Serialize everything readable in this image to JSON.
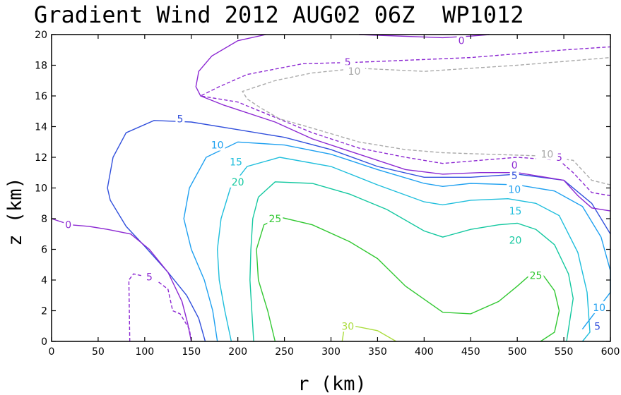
{
  "chart_data": {
    "type": "contour",
    "title": "Gradient Wind 2012 AUG02 06Z  WP1012",
    "xlabel": "r (km)",
    "ylabel": "z (km)",
    "xlim": [
      0,
      600
    ],
    "ylim": [
      0,
      20
    ],
    "xticks": [
      "0",
      "50",
      "100",
      "150",
      "200",
      "250",
      "300",
      "350",
      "400",
      "450",
      "500",
      "550",
      "600"
    ],
    "yticks": [
      "0",
      "2",
      "4",
      "6",
      "8",
      "10",
      "12",
      "14",
      "16",
      "18",
      "20"
    ],
    "grid": false,
    "contours": [
      {
        "level": "30",
        "color": "#aadc3c",
        "dash": false,
        "points": [
          [
            312,
            0
          ],
          [
            314,
            0.8
          ],
          [
            325,
            1.0
          ],
          [
            350,
            0.7
          ],
          [
            370,
            0
          ]
        ],
        "labels": [
          [
            318,
            1.0
          ]
        ]
      },
      {
        "level": "25",
        "color": "#32c832",
        "dash": false,
        "points": [
          [
            240,
            0
          ],
          [
            232,
            2
          ],
          [
            222,
            4
          ],
          [
            220,
            6
          ],
          [
            228,
            7.6
          ],
          [
            245,
            8.1
          ],
          [
            280,
            7.6
          ],
          [
            320,
            6.5
          ],
          [
            350,
            5.4
          ],
          [
            380,
            3.6
          ],
          [
            420,
            1.9
          ],
          [
            450,
            1.8
          ],
          [
            480,
            2.6
          ],
          [
            500,
            3.6
          ],
          [
            515,
            4.4
          ],
          [
            528,
            4.3
          ],
          [
            540,
            3.3
          ],
          [
            545,
            2.0
          ],
          [
            540,
            0.6
          ],
          [
            525,
            0
          ]
        ],
        "labels": [
          [
            240,
            8.0
          ],
          [
            520,
            4.3
          ]
        ]
      },
      {
        "level": "20",
        "color": "#14c8a0",
        "dash": false,
        "points": [
          [
            217,
            0
          ],
          [
            215,
            2
          ],
          [
            213,
            4
          ],
          [
            214,
            6
          ],
          [
            216,
            8
          ],
          [
            222,
            9.4
          ],
          [
            240,
            10.4
          ],
          [
            280,
            10.3
          ],
          [
            320,
            9.6
          ],
          [
            360,
            8.6
          ],
          [
            400,
            7.2
          ],
          [
            420,
            6.8
          ],
          [
            450,
            7.3
          ],
          [
            480,
            7.6
          ],
          [
            500,
            7.7
          ],
          [
            520,
            7.3
          ],
          [
            540,
            6.3
          ],
          [
            555,
            4.4
          ],
          [
            560,
            2.8
          ],
          [
            553,
            0
          ]
        ],
        "labels": [
          [
            200,
            10.4
          ],
          [
            498,
            6.6
          ]
        ]
      },
      {
        "level": "15",
        "color": "#1ebedc",
        "dash": false,
        "points": [
          [
            193,
            0
          ],
          [
            186,
            2
          ],
          [
            180,
            4
          ],
          [
            178,
            6
          ],
          [
            182,
            8
          ],
          [
            192,
            10
          ],
          [
            210,
            11.4
          ],
          [
            245,
            12.0
          ],
          [
            300,
            11.4
          ],
          [
            350,
            10.2
          ],
          [
            400,
            9.1
          ],
          [
            420,
            8.9
          ],
          [
            450,
            9.2
          ],
          [
            490,
            9.3
          ],
          [
            520,
            9.0
          ],
          [
            545,
            8.2
          ],
          [
            565,
            5.8
          ],
          [
            575,
            3.2
          ],
          [
            578,
            0.6
          ],
          [
            570,
            0
          ]
        ],
        "labels": [
          [
            198,
            11.7
          ],
          [
            498,
            8.5
          ]
        ]
      },
      {
        "level": "10",
        "color": "#1ea0f0",
        "dash": false,
        "points": [
          [
            178,
            0
          ],
          [
            173,
            2
          ],
          [
            164,
            4
          ],
          [
            150,
            6
          ],
          [
            142,
            8
          ],
          [
            148,
            10
          ],
          [
            166,
            12
          ],
          [
            200,
            13.0
          ],
          [
            250,
            12.8
          ],
          [
            300,
            12.2
          ],
          [
            350,
            11.2
          ],
          [
            400,
            10.3
          ],
          [
            420,
            10.1
          ],
          [
            450,
            10.3
          ],
          [
            500,
            10.2
          ],
          [
            540,
            9.8
          ],
          [
            570,
            8.8
          ],
          [
            590,
            6.8
          ],
          [
            600,
            4.6
          ],
          [
            600,
            3.2
          ],
          [
            580,
            1.6
          ],
          [
            570,
            0.8
          ]
        ],
        "labels": [
          [
            178,
            12.8
          ],
          [
            497,
            9.9
          ],
          [
            588,
            2.2
          ]
        ]
      },
      {
        "level": "5",
        "color": "#3250dc",
        "dash": false,
        "points": [
          [
            165,
            0
          ],
          [
            158,
            1.5
          ],
          [
            145,
            3
          ],
          [
            125,
            4.5
          ],
          [
            100,
            6.2
          ],
          [
            80,
            7.5
          ],
          [
            70,
            8.5
          ],
          [
            63,
            9.2
          ],
          [
            60,
            10
          ],
          [
            66,
            12
          ],
          [
            80,
            13.6
          ],
          [
            110,
            14.4
          ],
          [
            150,
            14.3
          ],
          [
            200,
            13.8
          ],
          [
            250,
            13.3
          ],
          [
            300,
            12.5
          ],
          [
            350,
            11.4
          ],
          [
            400,
            10.7
          ],
          [
            450,
            10.7
          ],
          [
            500,
            10.9
          ],
          [
            550,
            10.5
          ],
          [
            580,
            9.0
          ],
          [
            600,
            7.0
          ]
        ],
        "labels": [
          [
            138,
            14.5
          ],
          [
            497,
            10.8
          ],
          [
            586,
            1.0
          ]
        ]
      },
      {
        "level": "0",
        "color": "#8c28d2",
        "dash": false,
        "points": [
          [
            150,
            0
          ],
          [
            146,
            1.2
          ],
          [
            140,
            2.6
          ],
          [
            125,
            4.5
          ],
          [
            105,
            6.0
          ],
          [
            85,
            7.0
          ],
          [
            60,
            7.3
          ],
          [
            40,
            7.5
          ],
          [
            20,
            7.6
          ],
          [
            0,
            8.0
          ]
        ],
        "labels": [
          [
            18,
            7.6
          ]
        ]
      },
      {
        "level": "0",
        "color": "#8c28d2",
        "dash": false,
        "points": [
          [
            600,
            8.5
          ],
          [
            580,
            8.7
          ],
          [
            565,
            9.5
          ],
          [
            550,
            10.5
          ],
          [
            500,
            11.0
          ],
          [
            460,
            11.0
          ],
          [
            420,
            10.9
          ],
          [
            380,
            11.2
          ],
          [
            330,
            12.2
          ],
          [
            280,
            13.2
          ],
          [
            240,
            14.3
          ],
          [
            185,
            15.4
          ],
          [
            160,
            16.0
          ],
          [
            155,
            16.6
          ],
          [
            158,
            17.6
          ],
          [
            172,
            18.6
          ],
          [
            200,
            19.6
          ],
          [
            230,
            20.0
          ]
        ],
        "labels": [
          [
            497,
            11.5
          ]
        ]
      },
      {
        "level": "0",
        "color": "#8c28d2",
        "dash": false,
        "points": [
          [
            330,
            20.0
          ],
          [
            420,
            19.8
          ],
          [
            450,
            19.9
          ],
          [
            470,
            20.0
          ]
        ],
        "labels": [
          [
            440,
            19.6
          ]
        ]
      },
      {
        "level": "-5",
        "color": "#8c28d2",
        "dash": true,
        "points": [
          [
            600,
            9.5
          ],
          [
            580,
            9.7
          ],
          [
            560,
            11.0
          ],
          [
            545,
            11.8
          ],
          [
            500,
            12.0
          ],
          [
            460,
            11.8
          ],
          [
            420,
            11.6
          ],
          [
            380,
            12.0
          ],
          [
            330,
            12.6
          ],
          [
            280,
            13.6
          ],
          [
            240,
            14.6
          ],
          [
            200,
            15.6
          ],
          [
            160,
            16.0
          ],
          [
            180,
            16.6
          ],
          [
            210,
            17.4
          ],
          [
            270,
            18.1
          ],
          [
            330,
            18.2
          ],
          [
            450,
            18.5
          ],
          [
            550,
            19.0
          ],
          [
            600,
            19.2
          ]
        ],
        "labels": [
          [
            545,
            12.0
          ],
          [
            318,
            18.2
          ]
        ]
      },
      {
        "level": "-5",
        "color": "#8c28d2",
        "dash": true,
        "points": [
          [
            84,
            0
          ],
          [
            83,
            4
          ],
          [
            88,
            4.4
          ],
          [
            110,
            4.1
          ],
          [
            125,
            3.4
          ],
          [
            130,
            2.0
          ],
          [
            138,
            1.8
          ],
          [
            148,
            0.8
          ],
          [
            150,
            0
          ]
        ],
        "labels": [
          [
            105,
            4.2
          ]
        ]
      },
      {
        "level": "-10",
        "color": "#aaaaaa",
        "dash": true,
        "points": [
          [
            600,
            10.2
          ],
          [
            580,
            10.5
          ],
          [
            560,
            11.8
          ],
          [
            520,
            12.1
          ],
          [
            470,
            12.2
          ],
          [
            420,
            12.3
          ],
          [
            380,
            12.5
          ],
          [
            330,
            13.0
          ],
          [
            280,
            13.9
          ],
          [
            245,
            14.5
          ],
          [
            225,
            15.2
          ],
          [
            210,
            15.8
          ],
          [
            205,
            16.3
          ],
          [
            240,
            17.0
          ],
          [
            280,
            17.5
          ],
          [
            330,
            17.8
          ],
          [
            400,
            17.6
          ],
          [
            450,
            17.8
          ],
          [
            500,
            18.0
          ],
          [
            560,
            18.3
          ],
          [
            600,
            18.5
          ]
        ],
        "labels": [
          [
            532,
            12.2
          ],
          [
            325,
            17.6
          ]
        ]
      }
    ]
  }
}
